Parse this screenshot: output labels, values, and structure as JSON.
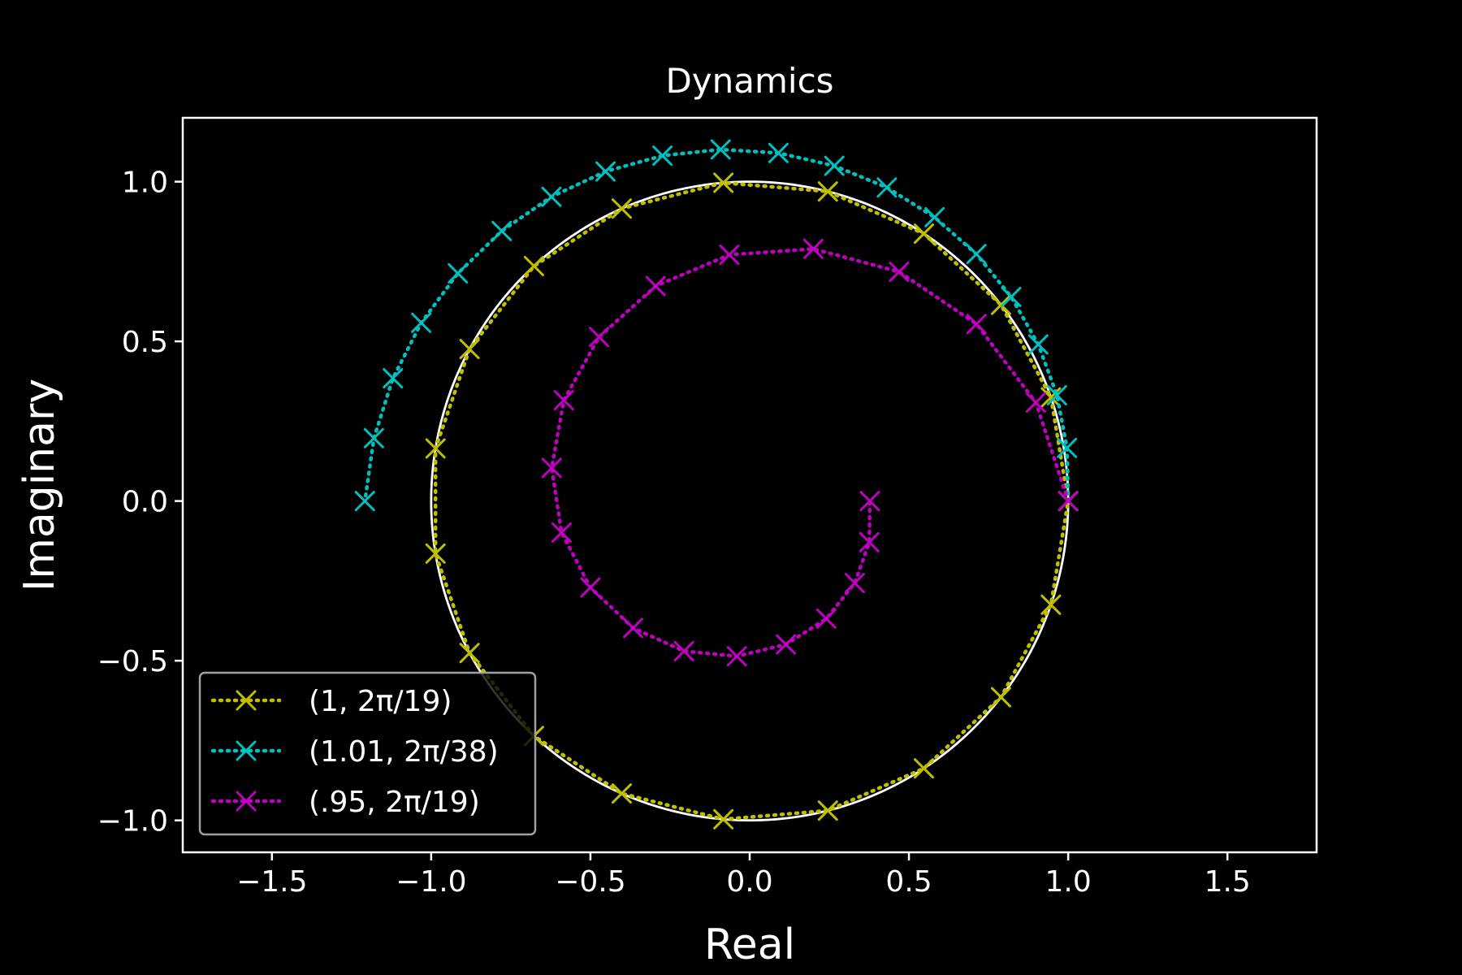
{
  "chart_data": {
    "type": "line",
    "title": "Dynamics",
    "xlabel": "Real",
    "ylabel": "Imaginary",
    "xlim": [
      -1.78,
      1.78
    ],
    "ylim": [
      -1.1,
      1.2
    ],
    "xticks": [
      {
        "value": -1.5,
        "label": "−1.5"
      },
      {
        "value": -1.0,
        "label": "−1.0"
      },
      {
        "value": -0.5,
        "label": "−0.5"
      },
      {
        "value": 0.0,
        "label": "0.0"
      },
      {
        "value": 0.5,
        "label": "0.5"
      },
      {
        "value": 1.0,
        "label": "1.0"
      },
      {
        "value": 1.5,
        "label": "1.5"
      }
    ],
    "yticks": [
      {
        "value": 1.0,
        "label": "1.0"
      },
      {
        "value": 0.5,
        "label": "0.5"
      },
      {
        "value": 0.0,
        "label": "0.0"
      },
      {
        "value": -0.5,
        "label": "−0.5"
      },
      {
        "value": -1.0,
        "label": "−1.0"
      }
    ],
    "grid": false,
    "legend_position": "lower-left",
    "background": "#000000",
    "foreground": "#ffffff",
    "reference_circle": {
      "radius": 1.0,
      "color": "#ffffff"
    },
    "series": [
      {
        "name": "(1, 2π/19)",
        "color": "#bfbf00",
        "marker": "x",
        "linestyle": "dotted",
        "radius": 1.0,
        "n_points": 20,
        "angle_step_fraction": 0.05263158
      },
      {
        "name": "(1.01, 2π/38)",
        "color": "#00bfbf",
        "marker": "x",
        "linestyle": "dotted",
        "radius": 1.01,
        "n_points": 20,
        "angle_step_fraction": 0.02631579
      },
      {
        "name": "(.95, 2π/19)",
        "color": "#bf00bf",
        "marker": "x",
        "linestyle": "dotted",
        "radius": 0.95,
        "n_points": 20,
        "angle_step_fraction": 0.05263158
      }
    ]
  }
}
